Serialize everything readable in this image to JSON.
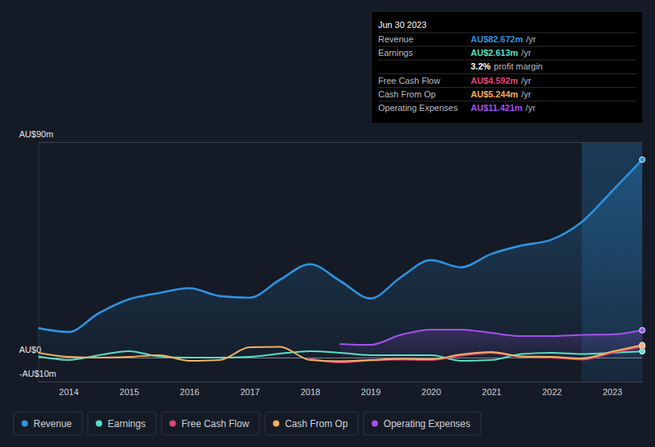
{
  "chart_data": {
    "type": "line",
    "x": [
      2013.5,
      2014,
      2014.5,
      2015,
      2015.5,
      2016,
      2016.5,
      2017,
      2017.5,
      2018,
      2018.5,
      2019,
      2019.5,
      2020,
      2020.5,
      2021,
      2021.5,
      2022,
      2022.5,
      2023,
      2023.5
    ],
    "xlim": [
      2013.5,
      2023.5
    ],
    "xticks": [
      2014,
      2015,
      2016,
      2017,
      2018,
      2019,
      2020,
      2021,
      2022,
      2023
    ],
    "ylim": [
      -10,
      90
    ],
    "yticks": [
      {
        "value": -10,
        "label": "-AU$10m"
      },
      {
        "value": 0,
        "label": "AU$0"
      },
      {
        "value": 90,
        "label": "AU$90m"
      }
    ],
    "grid": true,
    "legend": "bottom",
    "series": [
      {
        "name": "Revenue",
        "color": "#2e93e1",
        "type": "area",
        "values": [
          12.3,
          10.7,
          18.5,
          24.3,
          27,
          29,
          25.7,
          25,
          32.5,
          39,
          32,
          24.7,
          33.5,
          40.7,
          37.7,
          43.3,
          46.8,
          49.3,
          56.7,
          69.5,
          82.672
        ]
      },
      {
        "name": "Earnings",
        "color": "#58e0c4",
        "type": "line",
        "values": [
          0.5,
          -1,
          1,
          2.7,
          0.5,
          0,
          0,
          0.3,
          1.7,
          2.7,
          2,
          1,
          1,
          1,
          -1.3,
          -1,
          1.5,
          2,
          1.5,
          2,
          2.613
        ]
      },
      {
        "name": "Free Cash Flow",
        "color": "#e0457b",
        "type": "line",
        "values": [
          null,
          null,
          null,
          null,
          null,
          null,
          null,
          null,
          null,
          -0.5,
          -2,
          -1.2,
          -0.8,
          -1,
          0.8,
          2,
          0.3,
          0,
          -0.8,
          2,
          4.592
        ]
      },
      {
        "name": "Cash From Op",
        "color": "#f5b15f",
        "type": "line",
        "values": [
          2,
          0.3,
          0,
          0.3,
          1,
          -1.3,
          -1,
          4.3,
          4.5,
          -1,
          -1.5,
          -1,
          -0.5,
          -0.7,
          1.3,
          2.3,
          0.5,
          0.3,
          -0.3,
          2.5,
          5.244
        ]
      },
      {
        "name": "Operating Expenses",
        "color": "#a552f0",
        "type": "area",
        "values": [
          null,
          null,
          null,
          null,
          null,
          null,
          null,
          null,
          null,
          null,
          5.7,
          5.3,
          9.5,
          11.7,
          11.7,
          10.3,
          9,
          9,
          9.5,
          9.7,
          11.421
        ]
      }
    ],
    "tooltip": {
      "title": "Jun 30 2023",
      "rows": [
        {
          "label": "Revenue",
          "value": "AU$82.672m",
          "unit": "/yr",
          "color": "#2e93e1"
        },
        {
          "label": "Earnings",
          "value": "AU$2.613m",
          "unit": "/yr",
          "color": "#58e0c4"
        },
        {
          "value": "3.2%",
          "unit": "profit margin",
          "color": "#ffffff"
        },
        {
          "label": "Free Cash Flow",
          "value": "AU$4.592m",
          "unit": "/yr",
          "color": "#e0457b"
        },
        {
          "label": "Cash From Op",
          "value": "AU$5.244m",
          "unit": "/yr",
          "color": "#f5b15f"
        },
        {
          "label": "Operating Expenses",
          "value": "AU$11.421m",
          "unit": "/yr",
          "color": "#a552f0"
        }
      ]
    }
  }
}
